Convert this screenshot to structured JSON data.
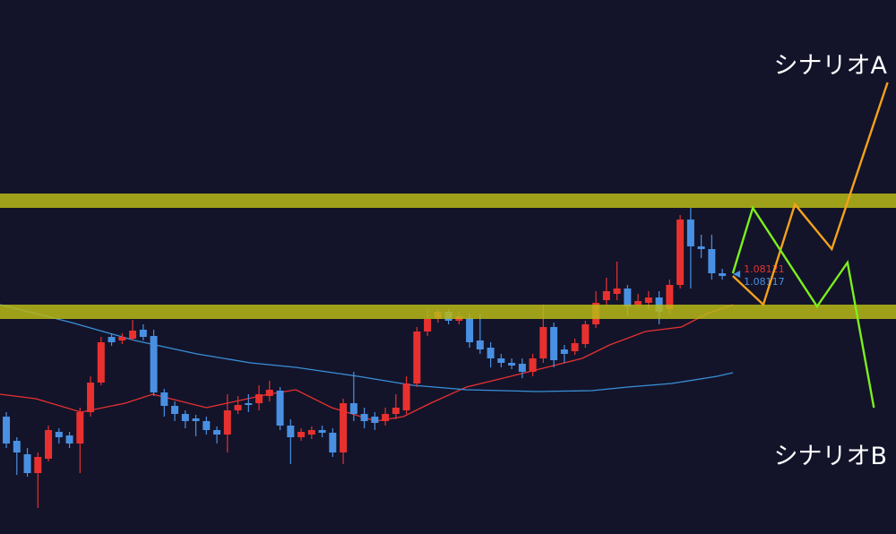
{
  "chart_data": {
    "type": "candlestick",
    "xlim": [
      -0.6,
      84.5
    ],
    "ylim": [
      1.07825,
      1.08421
    ],
    "up_color": "#e8312f",
    "down_color": "#4a90e2",
    "zone_color": "#b8b818",
    "open": [
      1.07956,
      1.07929,
      1.07914,
      1.07893,
      1.07909,
      1.07939,
      1.07935,
      1.07926,
      1.07961,
      1.07994,
      1.08045,
      1.08041,
      1.08043,
      1.08053,
      1.08046,
      1.07983,
      1.07968,
      1.07959,
      1.07954,
      1.07951,
      1.07941,
      1.07936,
      1.07963,
      1.07971,
      1.07971,
      1.07979,
      1.07985,
      1.07946,
      1.07933,
      1.07936,
      1.07941,
      1.07938,
      1.07916,
      1.07971,
      1.07959,
      1.07956,
      1.07951,
      1.07959,
      1.07963,
      1.07993,
      1.08051,
      1.08065,
      1.08073,
      1.08063,
      1.08066,
      1.08041,
      1.08033,
      1.08021,
      1.08016,
      1.08015,
      1.08006,
      1.08021,
      1.08056,
      1.08031,
      1.08029,
      1.08037,
      1.08059,
      1.08086,
      1.08093,
      1.08099,
      1.08081,
      1.08083,
      1.08089,
      1.08076,
      1.08103,
      1.08176,
      1.08146,
      1.08143,
      1.08116
    ],
    "high": [
      1.07961,
      1.07933,
      1.07921,
      1.07916,
      1.07946,
      1.07943,
      1.07939,
      1.07966,
      1.08001,
      1.08045,
      1.08049,
      1.08049,
      1.08064,
      1.08059,
      1.08053,
      1.07987,
      1.07973,
      1.07963,
      1.07958,
      1.07956,
      1.07945,
      1.07981,
      1.07979,
      1.07981,
      1.07991,
      1.07996,
      1.07989,
      1.07953,
      1.07943,
      1.07945,
      1.07946,
      1.07943,
      1.07976,
      1.08006,
      1.07966,
      1.07961,
      1.07966,
      1.07981,
      1.08001,
      1.08056,
      1.08076,
      1.08076,
      1.08076,
      1.08073,
      1.08071,
      1.08071,
      1.08039,
      1.08026,
      1.08021,
      1.08021,
      1.08026,
      1.08081,
      1.08061,
      1.08036,
      1.08043,
      1.08063,
      1.08096,
      1.08111,
      1.08129,
      1.08103,
      1.08093,
      1.08096,
      1.08096,
      1.08109,
      1.08181,
      1.08189,
      1.08159,
      1.08159,
      1.08121
    ],
    "low": [
      1.07921,
      1.07891,
      1.07889,
      1.07854,
      1.07906,
      1.07926,
      1.07921,
      1.07893,
      1.07956,
      1.07991,
      1.08035,
      1.08037,
      1.08041,
      1.08041,
      1.07979,
      1.07956,
      1.07951,
      1.07943,
      1.07934,
      1.07936,
      1.07926,
      1.07916,
      1.07959,
      1.07961,
      1.07963,
      1.07973,
      1.07941,
      1.07903,
      1.07929,
      1.07931,
      1.07933,
      1.07911,
      1.07903,
      1.07951,
      1.07943,
      1.07941,
      1.07946,
      1.07953,
      1.07959,
      1.07989,
      1.08046,
      1.08061,
      1.08059,
      1.08059,
      1.08033,
      1.08026,
      1.08011,
      1.08011,
      1.08009,
      1.07999,
      1.08001,
      1.08016,
      1.08011,
      1.08016,
      1.08025,
      1.08033,
      1.08055,
      1.08081,
      1.08086,
      1.08069,
      1.08077,
      1.08076,
      1.08059,
      1.08071,
      1.08099,
      1.08099,
      1.08133,
      1.08109,
      1.08109
    ],
    "close": [
      1.07926,
      1.07916,
      1.07893,
      1.07911,
      1.07941,
      1.07933,
      1.07926,
      1.07961,
      1.07994,
      1.08039,
      1.08039,
      1.08045,
      1.08052,
      1.08045,
      1.07983,
      1.07968,
      1.07959,
      1.07951,
      1.07951,
      1.07941,
      1.07936,
      1.07963,
      1.07969,
      1.07969,
      1.07981,
      1.07986,
      1.07946,
      1.07933,
      1.07939,
      1.07941,
      1.07938,
      1.07916,
      1.07971,
      1.07959,
      1.07951,
      1.07949,
      1.07959,
      1.07966,
      1.07993,
      1.08051,
      1.08065,
      1.08073,
      1.08063,
      1.08068,
      1.08039,
      1.08031,
      1.08021,
      1.08016,
      1.08013,
      1.08006,
      1.08021,
      1.08056,
      1.08019,
      1.08026,
      1.08038,
      1.08059,
      1.08083,
      1.08096,
      1.08099,
      1.08079,
      1.08085,
      1.08089,
      1.08073,
      1.08103,
      1.08176,
      1.08146,
      1.08143,
      1.08116,
      1.08113
    ],
    "lines": [
      {
        "color": "#e8312f",
        "x": [
          -0.6,
          2.8,
          7.1,
          11.3,
          13.9,
          19.0,
          24.9,
          27.5,
          30.9,
          35.1,
          37.7,
          40.3,
          43.7,
          47.9,
          51.3,
          54.7,
          57.3,
          60.7,
          64.1,
          66.6,
          69.0
        ],
        "values": [
          1.07981,
          1.07976,
          1.07961,
          1.07971,
          1.07981,
          1.07966,
          1.07981,
          1.07986,
          1.07966,
          1.07951,
          1.07956,
          1.07971,
          1.07989,
          1.08001,
          1.08011,
          1.08021,
          1.08036,
          1.08051,
          1.08056,
          1.08071,
          1.08081
        ]
      },
      {
        "color": "#3a8fd8",
        "x": [
          -0.6,
          6.2,
          12.2,
          18.1,
          23.2,
          27.5,
          33.4,
          38.6,
          43.7,
          50.5,
          55.6,
          59.0,
          63.2,
          67.5,
          69.0
        ],
        "values": [
          1.08081,
          1.08061,
          1.08041,
          1.08026,
          1.08016,
          1.08011,
          1.08001,
          1.07991,
          1.07986,
          1.07984,
          1.07985,
          1.07989,
          1.07993,
          1.08001,
          1.08005
        ]
      }
    ],
    "zones": [
      [
        1.08189,
        1.08205
      ],
      [
        1.08065,
        1.08081
      ]
    ],
    "series": [
      {
        "name": "シナリオA",
        "color": "#f5a21b",
        "x": [
          69.0,
          71.9,
          74.9,
          78.4,
          83.7
        ],
        "values": [
          1.08113,
          1.08081,
          1.08193,
          1.08143,
          1.08329
        ]
      },
      {
        "name": "シナリオB",
        "color": "#7cf01c",
        "x": [
          69.0,
          70.9,
          77.0,
          79.9,
          82.4
        ],
        "values": [
          1.08116,
          1.08189,
          1.08079,
          1.08128,
          1.07966
        ]
      }
    ],
    "price_labels": [
      {
        "value": 1.08121,
        "color": "#e8312f"
      },
      {
        "value": 1.08117,
        "color": "#4a90e2"
      }
    ]
  }
}
